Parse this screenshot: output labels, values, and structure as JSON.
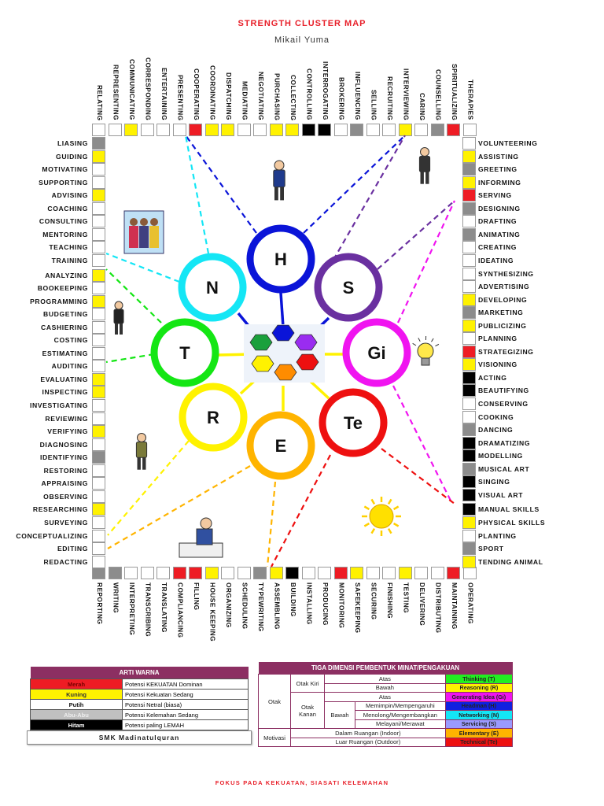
{
  "header": {
    "title": "STRENGTH CLUSTER MAP",
    "name": "Mikail Yuma"
  },
  "color_codes": {
    "R": "#ee1c24",
    "Y": "#fff200",
    "W": "#ffffff",
    "G": "#8c8c8c",
    "K": "#000000"
  },
  "top_items": [
    {
      "label": "RELATING",
      "c": "W"
    },
    {
      "label": "REPRESENTING",
      "c": "W"
    },
    {
      "label": "COMMUNICATING",
      "c": "Y"
    },
    {
      "label": "CORRESPONDING",
      "c": "W"
    },
    {
      "label": "ENTERTAINING",
      "c": "W"
    },
    {
      "label": "PRESENTING",
      "c": "W"
    },
    {
      "label": "COOPERATING",
      "c": "R"
    },
    {
      "label": "COORDINATING",
      "c": "Y"
    },
    {
      "label": "DISPATCHING",
      "c": "Y"
    },
    {
      "label": "MEDIATING",
      "c": "W"
    },
    {
      "label": "NEGOTIATING",
      "c": "W"
    },
    {
      "label": "PURCHASING",
      "c": "Y"
    },
    {
      "label": "COLLECTING",
      "c": "Y"
    },
    {
      "label": "CONTROLLING",
      "c": "K"
    },
    {
      "label": "INTERROGATING",
      "c": "K"
    },
    {
      "label": "BROKERING",
      "c": "W"
    },
    {
      "label": "INFLUENCING",
      "c": "G"
    },
    {
      "label": "SELLING",
      "c": "W"
    },
    {
      "label": "RECRUITING",
      "c": "W"
    },
    {
      "label": "INTERVIEWING",
      "c": "Y"
    },
    {
      "label": "CARING",
      "c": "W"
    },
    {
      "label": "COUNSELLING",
      "c": "G"
    },
    {
      "label": "SPIRITUALIZING",
      "c": "R"
    },
    {
      "label": "THERAPIES",
      "c": "W"
    }
  ],
  "bottom_items": [
    {
      "label": "REPORTING",
      "c": "G"
    },
    {
      "label": "WRITING",
      "c": "G"
    },
    {
      "label": "INTERPRETING",
      "c": "W"
    },
    {
      "label": "TRANSCRIBING",
      "c": "W"
    },
    {
      "label": "TRANSLATING",
      "c": "W"
    },
    {
      "label": "COMPLIANCING",
      "c": "R"
    },
    {
      "label": "FILLING",
      "c": "R"
    },
    {
      "label": "HOUSE KEEPING",
      "c": "Y"
    },
    {
      "label": "ORGANIZING",
      "c": "W"
    },
    {
      "label": "SCHEDULING",
      "c": "W"
    },
    {
      "label": "TYPEWRITING",
      "c": "G"
    },
    {
      "label": "ASSEMBLING",
      "c": "Y"
    },
    {
      "label": "BUILDING",
      "c": "K"
    },
    {
      "label": "INSTALLING",
      "c": "W"
    },
    {
      "label": "PRODUCING",
      "c": "W"
    },
    {
      "label": "MONITORING",
      "c": "R"
    },
    {
      "label": "SAFEKEEPING",
      "c": "Y"
    },
    {
      "label": "SECURING",
      "c": "W"
    },
    {
      "label": "FINISHING",
      "c": "W"
    },
    {
      "label": "TESTING",
      "c": "Y"
    },
    {
      "label": "DELIVERING",
      "c": "W"
    },
    {
      "label": "DISTRIBUTING",
      "c": "W"
    },
    {
      "label": "MAINTAINING",
      "c": "R"
    },
    {
      "label": "OPERATING",
      "c": "W"
    }
  ],
  "left_items": [
    {
      "label": "LIASING",
      "c": "G"
    },
    {
      "label": "GUIDING",
      "c": "Y"
    },
    {
      "label": "MOTIVATING",
      "c": "W"
    },
    {
      "label": "SUPPORTING",
      "c": "W"
    },
    {
      "label": "ADVISING",
      "c": "Y"
    },
    {
      "label": "COACHING",
      "c": "W"
    },
    {
      "label": "CONSULTING",
      "c": "W"
    },
    {
      "label": "MENTORING",
      "c": "W"
    },
    {
      "label": "TEACHING",
      "c": "W"
    },
    {
      "label": "TRAINING",
      "c": "W"
    },
    {
      "label": "ANALYZING",
      "c": "Y"
    },
    {
      "label": "BOOKEEPING",
      "c": "W"
    },
    {
      "label": "PROGRAMMING",
      "c": "Y"
    },
    {
      "label": "BUDGETING",
      "c": "W"
    },
    {
      "label": "CASHIERING",
      "c": "W"
    },
    {
      "label": "COSTING",
      "c": "W"
    },
    {
      "label": "ESTIMATING",
      "c": "W"
    },
    {
      "label": "AUDITING",
      "c": "W"
    },
    {
      "label": "EVALUATING",
      "c": "Y"
    },
    {
      "label": "INSPECTING",
      "c": "Y"
    },
    {
      "label": "INVESTIGATING",
      "c": "W"
    },
    {
      "label": "REVIEWING",
      "c": "W"
    },
    {
      "label": "VERIFYING",
      "c": "Y"
    },
    {
      "label": "DIAGNOSING",
      "c": "W"
    },
    {
      "label": "IDENTIFYING",
      "c": "G"
    },
    {
      "label": "RESTORING",
      "c": "W"
    },
    {
      "label": "APPRAISING",
      "c": "W"
    },
    {
      "label": "OBSERVING",
      "c": "W"
    },
    {
      "label": "RESEARCHING",
      "c": "Y"
    },
    {
      "label": "SURVEYING",
      "c": "W"
    },
    {
      "label": "CONCEPTUALIZING",
      "c": "W"
    },
    {
      "label": "EDITING",
      "c": "W"
    },
    {
      "label": "REDACTING",
      "c": "W"
    }
  ],
  "right_items": [
    {
      "label": "VOLUNTEERING",
      "c": "W"
    },
    {
      "label": "ASSISTING",
      "c": "Y"
    },
    {
      "label": "GREETING",
      "c": "G"
    },
    {
      "label": "INFORMING",
      "c": "Y"
    },
    {
      "label": "SERVING",
      "c": "R"
    },
    {
      "label": "DESIGNING",
      "c": "G"
    },
    {
      "label": "DRAFTING",
      "c": "W"
    },
    {
      "label": "ANIMATING",
      "c": "G"
    },
    {
      "label": "CREATING",
      "c": "W"
    },
    {
      "label": "IDEATING",
      "c": "W"
    },
    {
      "label": "SYNTHESIZING",
      "c": "W"
    },
    {
      "label": "ADVERTISING",
      "c": "W"
    },
    {
      "label": "DEVELOPING",
      "c": "Y"
    },
    {
      "label": "MARKETING",
      "c": "G"
    },
    {
      "label": "PUBLICIZING",
      "c": "Y"
    },
    {
      "label": "PLANNING",
      "c": "W"
    },
    {
      "label": "STRATEGIZING",
      "c": "R"
    },
    {
      "label": "VISIONING",
      "c": "Y"
    },
    {
      "label": "ACTING",
      "c": "K"
    },
    {
      "label": "BEAUTIFYING",
      "c": "K"
    },
    {
      "label": "CONSERVING",
      "c": "W"
    },
    {
      "label": "COOKING",
      "c": "W"
    },
    {
      "label": "DANCING",
      "c": "G"
    },
    {
      "label": "DRAMATIZING",
      "c": "K"
    },
    {
      "label": "MODELLING",
      "c": "K"
    },
    {
      "label": "MUSICAL ART",
      "c": "G"
    },
    {
      "label": "SINGING",
      "c": "K"
    },
    {
      "label": "VISUAL ART",
      "c": "K"
    },
    {
      "label": "MANUAL SKILLS",
      "c": "K"
    },
    {
      "label": "PHYSICAL SKILLS",
      "c": "Y"
    },
    {
      "label": "PLANTING",
      "c": "W"
    },
    {
      "label": "SPORT",
      "c": "G"
    },
    {
      "label": "TENDING ANIMAL",
      "c": "Y"
    }
  ],
  "clusters": [
    {
      "letter": "H",
      "color": "#0a14d8"
    },
    {
      "letter": "N",
      "color": "#14e6f5"
    },
    {
      "letter": "S",
      "color": "#6a30a0"
    },
    {
      "letter": "T",
      "color": "#14e614"
    },
    {
      "letter": "Gi",
      "color": "#f014f0"
    },
    {
      "letter": "R",
      "color": "#fff200"
    },
    {
      "letter": "Te",
      "color": "#ee1010"
    },
    {
      "letter": "E",
      "color": "#ffb400"
    }
  ],
  "center_hexagons": [
    "#1aa03c",
    "#0a14d8",
    "#9a2cf0",
    "#fff200",
    "#ff8c00",
    "#ee1010"
  ],
  "illustrations": [
    "police-officer",
    "group-of-people",
    "waiter",
    "standing-man",
    "light-bulb",
    "detective",
    "person-writing",
    "sun"
  ],
  "color_legend": {
    "title": "ARTI WARNA",
    "rows": [
      {
        "name": "Merah",
        "desc": "Potensi KEKUATAN Dominan",
        "bg": "#ee1c24",
        "fg": "#7a0000"
      },
      {
        "name": "Kuning",
        "desc": "Potensi Kekuatan Sedang",
        "bg": "#fff200",
        "fg": "#333"
      },
      {
        "name": "Putih",
        "desc": "Potensi Netral (biasa)",
        "bg": "#ffffff",
        "fg": "#111"
      },
      {
        "name": "Abu-Abu",
        "desc": "Potensi Kelemahan Sedang",
        "bg": "#c0c0c0",
        "fg": "#eee"
      },
      {
        "name": "Hitam",
        "desc": "Potensi paling LEMAH",
        "bg": "#000000",
        "fg": "#fff"
      }
    ]
  },
  "school": "SMK Madinatulquran",
  "dimension_table": {
    "title": "TIGA DIMENSI PEMBENTUK MINAT/PENGAKUAN",
    "otak": "Otak",
    "otak_kiri": "Otak Kiri",
    "otak_kanan": "Otak Kanan",
    "motivasi": "Motivasi",
    "atas": "Atas",
    "bawah": "Bawah",
    "memimpin": "Memimpin/Mempengaruhi",
    "menolong": "Menolong/Mengembangkan",
    "melayani": "Melayani/Merawat",
    "indoor": "Dalam Ruangan (Indoor)",
    "outdoor": "Luar Ruangan (Outdoor)",
    "categories": [
      {
        "label": "Thinking (T)",
        "bg": "#22ee22"
      },
      {
        "label": "Reasoning (R)",
        "bg": "#fff200"
      },
      {
        "label": "Generating Idea (Gi)",
        "bg": "#f014f0"
      },
      {
        "label": "Headman (H)",
        "bg": "#1020e0"
      },
      {
        "label": "Networking (N)",
        "bg": "#14e6f5"
      },
      {
        "label": "Servicing (S)",
        "bg": "#9a9aff"
      },
      {
        "label": "Elementary (E)",
        "bg": "#ffb400"
      },
      {
        "label": "Technical (Te)",
        "bg": "#ee1010"
      }
    ]
  },
  "footer": "FOKUS PADA KEKUATAN, SIASATI KELEMAHAN"
}
